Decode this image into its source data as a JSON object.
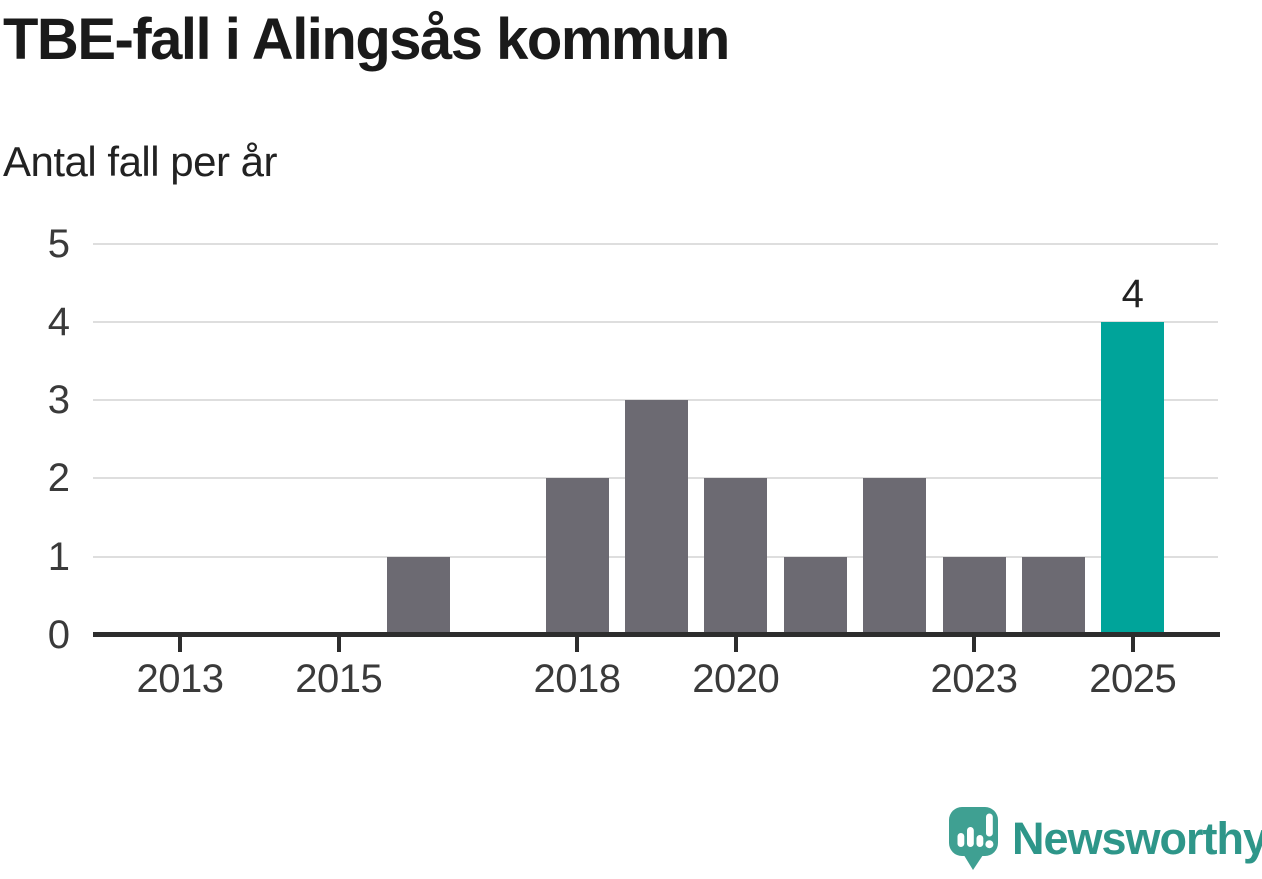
{
  "header": {
    "title": "TBE-fall i Alingsås kommun",
    "subtitle": "Antal fall per år"
  },
  "chart_data": {
    "type": "bar",
    "title": "TBE-fall i Alingsås kommun",
    "subtitle": "Antal fall per år",
    "xlabel": "",
    "ylabel": "Antal fall per år",
    "categories": [
      2012,
      2013,
      2014,
      2015,
      2016,
      2017,
      2018,
      2019,
      2020,
      2021,
      2022,
      2023,
      2024,
      2025
    ],
    "values": [
      0,
      0,
      0,
      0,
      1,
      0,
      2,
      3,
      2,
      1,
      2,
      1,
      1,
      4
    ],
    "highlight_category": 2025,
    "highlight_value": 4,
    "highlight_value_label": "4",
    "ylim": [
      0,
      5
    ],
    "yticks": [
      0,
      1,
      2,
      3,
      4,
      5
    ],
    "xticks": [
      2013,
      2015,
      2018,
      2020,
      2023,
      2025
    ],
    "grid": true,
    "legend": "none",
    "colors": {
      "bar": "#6c6a72",
      "highlight": "#00a49a",
      "gridline": "#dedede",
      "axis": "#2d2d2d",
      "tick_label": "#3a3a3a"
    }
  },
  "footer": {
    "brand": "Newsworthy",
    "brand_color": "#2e9689",
    "icon_color": "#3fa092",
    "icon_name": "newsworthy-logo-icon"
  }
}
